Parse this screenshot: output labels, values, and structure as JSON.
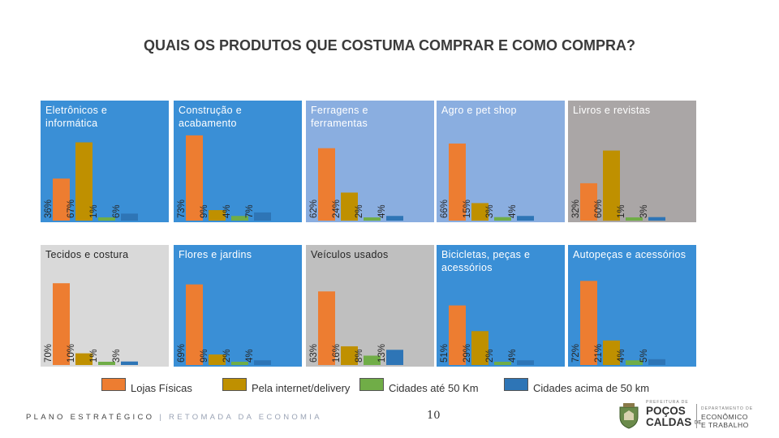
{
  "title": "QUAIS OS PRODUTOS QUE COSTUMA COMPRAR E COMO COMPRA?",
  "colors": {
    "lojas": "#ed7d31",
    "internet": "#bf9000",
    "cidades50": "#70ad47",
    "cidadesAcima": "#2e75b6"
  },
  "legend": [
    {
      "label": "Lojas Físicas",
      "color": "#ed7d31"
    },
    {
      "label": "Pela internet/delivery",
      "color": "#bf9000"
    },
    {
      "label": "Cidades até 50 Km",
      "color": "#70ad47"
    },
    {
      "label": "Cidades acima de 50 km",
      "color": "#2e75b6"
    }
  ],
  "chart_data": [
    {
      "type": "bar",
      "title": "Eletrônicos e informática",
      "categories": [
        "Lojas Físicas",
        "Pela internet/delivery",
        "Cidades até 50 Km",
        "Cidades acima de 50 km"
      ],
      "values": [
        36,
        67,
        1,
        6
      ],
      "labels": [
        "36%",
        "67%",
        "1%",
        "6%"
      ],
      "bg": "#3a8fd6",
      "title_color": "#ffffff"
    },
    {
      "type": "bar",
      "title": "Construção e acabamento",
      "categories": [
        "Lojas Físicas",
        "Pela internet/delivery",
        "Cidades até 50 Km",
        "Cidades acima de 50 km"
      ],
      "values": [
        73,
        9,
        4,
        7
      ],
      "labels": [
        "73%",
        "9%",
        "4%",
        "7%"
      ],
      "bg": "#3a8fd6",
      "title_color": "#ffffff"
    },
    {
      "type": "bar",
      "title": "Ferragens e ferramentas",
      "categories": [
        "Lojas Físicas",
        "Pela internet/delivery",
        "Cidades até 50 Km",
        "Cidades acima de 50 km"
      ],
      "values": [
        62,
        24,
        2,
        4
      ],
      "labels": [
        "62%",
        "24%",
        "2%",
        "4%"
      ],
      "bg": "#8aaee0",
      "title_color": "#ffffff"
    },
    {
      "type": "bar",
      "title": "Agro e pet shop",
      "categories": [
        "Lojas Físicas",
        "Pela internet/delivery",
        "Cidades até 50 Km",
        "Cidades acima de 50 km"
      ],
      "values": [
        66,
        15,
        3,
        4
      ],
      "labels": [
        "66%",
        "15%",
        "3%",
        "4%"
      ],
      "bg": "#8aaee0",
      "title_color": "#ffffff"
    },
    {
      "type": "bar",
      "title": "Livros e revistas",
      "categories": [
        "Lojas Físicas",
        "Pela internet/delivery",
        "Cidades até 50 Km",
        "Cidades acima de 50 km"
      ],
      "values": [
        32,
        60,
        1,
        3
      ],
      "labels": [
        "32%",
        "60%",
        "1%",
        "3%"
      ],
      "bg": "#aaa6a6",
      "title_color": "#ffffff"
    },
    {
      "type": "bar",
      "title": "Tecidos e costura",
      "categories": [
        "Lojas Físicas",
        "Pela internet/delivery",
        "Cidades até 50 Km",
        "Cidades acima de 50 km"
      ],
      "values": [
        70,
        10,
        1,
        3
      ],
      "labels": [
        "70%",
        "10%",
        "1%",
        "3%"
      ],
      "bg": "#d9d9d9",
      "title_color": "#262626"
    },
    {
      "type": "bar",
      "title": "Flores e jardins",
      "categories": [
        "Lojas Físicas",
        "Pela internet/delivery",
        "Cidades até 50 Km",
        "Cidades acima de 50 km"
      ],
      "values": [
        69,
        9,
        2,
        4
      ],
      "labels": [
        "69%",
        "9%",
        "2%",
        "4%"
      ],
      "bg": "#3a8fd6",
      "title_color": "#ffffff"
    },
    {
      "type": "bar",
      "title": "Veículos usados",
      "categories": [
        "Lojas Físicas",
        "Pela internet/delivery",
        "Cidades até 50 Km",
        "Cidades acima de 50 km"
      ],
      "values": [
        63,
        16,
        8,
        13
      ],
      "labels": [
        "63%",
        "16%",
        "8%",
        "13%"
      ],
      "bg": "#bfbfbf",
      "title_color": "#262626"
    },
    {
      "type": "bar",
      "title": "Bicicletas, peças e acessórios",
      "categories": [
        "Lojas Físicas",
        "Pela internet/delivery",
        "Cidades até 50 Km",
        "Cidades acima de 50 km"
      ],
      "values": [
        51,
        29,
        2,
        4
      ],
      "labels": [
        "51%",
        "29%",
        "2%",
        "4%"
      ],
      "bg": "#3a8fd6",
      "title_color": "#ffffff"
    },
    {
      "type": "bar",
      "title": "Autopeças e acessórios",
      "categories": [
        "Lojas Físicas",
        "Pela internet/delivery",
        "Cidades até 50 Km",
        "Cidades acima de 50 km"
      ],
      "values": [
        72,
        21,
        4,
        5
      ],
      "labels": [
        "72%",
        "21%",
        "4%",
        "5%"
      ],
      "bg": "#3a8fd6",
      "title_color": "#ffffff"
    }
  ],
  "footer": {
    "main": "PLANO ESTRATÉGICO",
    "separator": "|",
    "sub": "RETOMADA DA ECONOMIA"
  },
  "page_number": "10",
  "logo": {
    "top": "PREFEITURA DE",
    "name1": "POÇOS",
    "de": "DE",
    "name2": "CALDAS",
    "dept_top": "DEPARTAMENTO DE",
    "dept1": "ECONÔMICO",
    "dept2": "E TRABALHO"
  }
}
